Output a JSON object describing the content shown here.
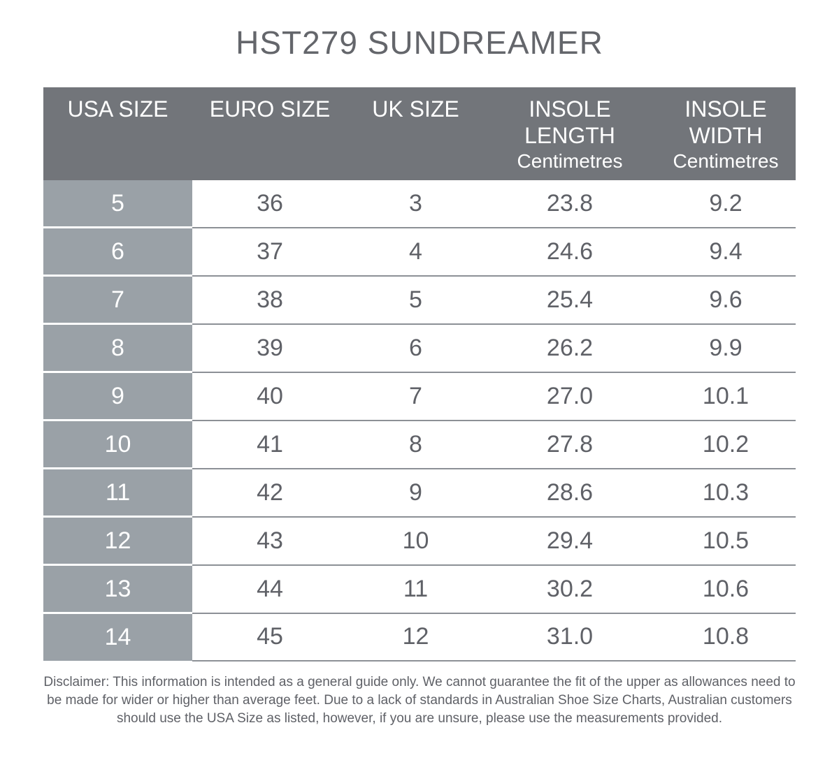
{
  "title": "HST279 SUNDREAMER",
  "colors": {
    "header_bg": "#72757a",
    "first_col_bg": "#9aa1a7",
    "text": "#5f6167"
  },
  "headers": [
    {
      "label": "USA SIZE",
      "unit": ""
    },
    {
      "label": "EURO SIZE",
      "unit": ""
    },
    {
      "label": "UK SIZE",
      "unit": ""
    },
    {
      "label": "INSOLE LENGTH",
      "unit": "Centimetres"
    },
    {
      "label": "INSOLE WIDTH",
      "unit": "Centimetres"
    }
  ],
  "rows": [
    [
      "5",
      "36",
      "3",
      "23.8",
      "9.2"
    ],
    [
      "6",
      "37",
      "4",
      "24.6",
      "9.4"
    ],
    [
      "7",
      "38",
      "5",
      "25.4",
      "9.6"
    ],
    [
      "8",
      "39",
      "6",
      "26.2",
      "9.9"
    ],
    [
      "9",
      "40",
      "7",
      "27.0",
      "10.1"
    ],
    [
      "10",
      "41",
      "8",
      "27.8",
      "10.2"
    ],
    [
      "11",
      "42",
      "9",
      "28.6",
      "10.3"
    ],
    [
      "12",
      "43",
      "10",
      "29.4",
      "10.5"
    ],
    [
      "13",
      "44",
      "11",
      "30.2",
      "10.6"
    ],
    [
      "14",
      "45",
      "12",
      "31.0",
      "10.8"
    ]
  ],
  "disclaimer": "Disclaimer: This information is intended as a general guide only. We cannot guarantee the fit of the upper as allowances need to be made for wider or higher than average feet. Due to a lack of standards in Australian Shoe Size Charts, Australian customers should use the USA Size as listed, however, if you are unsure, please use the measurements provided."
}
